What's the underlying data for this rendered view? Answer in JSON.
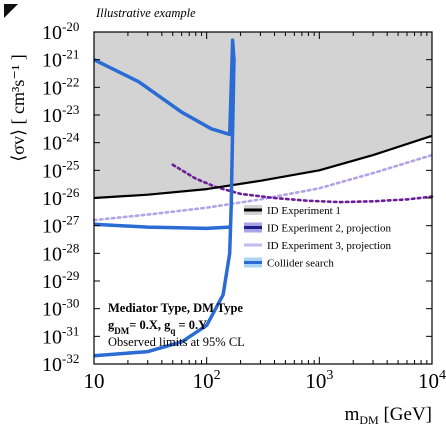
{
  "header": {
    "tag": "Illustrative example"
  },
  "chart_data": {
    "type": "line",
    "xscale": "log",
    "yscale": "log",
    "xlim": [
      10,
      10000
    ],
    "ylim": [
      1e-32,
      1e-20
    ],
    "xlabel": "m",
    "xlabel_sub": "DM",
    "xlabel_unit": " [GeV]",
    "ylabel": "⟨σv⟩ [ cm³s⁻¹ ]",
    "x_ticks": [
      {
        "value": 10,
        "base": "10",
        "exp": ""
      },
      {
        "value": 100,
        "base": "10",
        "exp": "2"
      },
      {
        "value": 1000,
        "base": "10",
        "exp": "3"
      },
      {
        "value": 10000,
        "base": "10",
        "exp": "4"
      }
    ],
    "y_ticks": [
      {
        "value": -20,
        "base": "10",
        "exp": "-20"
      },
      {
        "value": -21,
        "base": "10",
        "exp": "-21"
      },
      {
        "value": -22,
        "base": "10",
        "exp": "-22"
      },
      {
        "value": -23,
        "base": "10",
        "exp": "-23"
      },
      {
        "value": -24,
        "base": "10",
        "exp": "-24"
      },
      {
        "value": -25,
        "base": "10",
        "exp": "-25"
      },
      {
        "value": -26,
        "base": "10",
        "exp": "-26"
      },
      {
        "value": -27,
        "base": "10",
        "exp": "-27"
      },
      {
        "value": -28,
        "base": "10",
        "exp": "-28"
      },
      {
        "value": -29,
        "base": "10",
        "exp": "-29"
      },
      {
        "value": -30,
        "base": "10",
        "exp": "-30"
      },
      {
        "value": -31,
        "base": "10",
        "exp": "-31"
      },
      {
        "value": -32,
        "base": "10",
        "exp": "-32"
      }
    ],
    "series": [
      {
        "name": "ID Experiment 1",
        "color": "#000000",
        "fill": "#d3d3d3",
        "style": "solid",
        "x": [
          10,
          30,
          100,
          300,
          1000,
          3000,
          10000
        ],
        "y": [
          -26.0,
          -25.88,
          -25.68,
          -25.38,
          -25.0,
          -24.45,
          -23.75
        ]
      },
      {
        "name": "ID Experiment 2, projection",
        "color": "#6a1e9a",
        "style": "dotted",
        "x": [
          50,
          80,
          120,
          200,
          400,
          800,
          1500,
          3000,
          6000,
          10000
        ],
        "y": [
          -24.8,
          -25.3,
          -25.6,
          -25.85,
          -26.0,
          -26.1,
          -26.15,
          -26.12,
          -26.05,
          -25.95
        ]
      },
      {
        "name": "ID Experiment 3, projection",
        "color": "#b3a3e6",
        "style": "dotted",
        "x": [
          10,
          30,
          100,
          300,
          1000,
          3000,
          10000
        ],
        "y": [
          -26.8,
          -26.6,
          -26.35,
          -26.05,
          -25.65,
          -25.1,
          -24.45
        ]
      },
      {
        "name": "Collider search",
        "color": "#2b6cd4",
        "style": "solid",
        "x": [
          10,
          25,
          60,
          110,
          160,
          165,
          170,
          175,
          170,
          165,
          160,
          140,
          100,
          60,
          30,
          10
        ],
        "y": [
          -21.0,
          -21.8,
          -22.9,
          -23.5,
          -23.7,
          -22.0,
          -20.3,
          -21.0,
          -23.6,
          -26.3,
          -28.0,
          -29.5,
          -30.6,
          -31.2,
          -31.55,
          -31.7
        ]
      },
      {
        "name": "",
        "color": "#2b6cd4",
        "style": "solid",
        "x": [
          10,
          30,
          100,
          160
        ],
        "y": [
          -26.95,
          -27.05,
          -27.1,
          -27.05
        ]
      }
    ],
    "legend": {
      "position": "center-right",
      "items": [
        {
          "label": "ID Experiment 1",
          "color": "#000000",
          "fill": "#d3d3d3"
        },
        {
          "label": "ID Experiment 2, projection",
          "color": "#1f1f8a",
          "fill": "#a8a4e6"
        },
        {
          "label": "ID Experiment 3, projection",
          "color": "#c4baf0",
          "fill": ""
        },
        {
          "label": "Collider search",
          "color": "#2b6cd4",
          "fill": "#a9d4f2"
        }
      ]
    },
    "annotations": [
      {
        "parts": [
          {
            "t": "Mediator Type, DM Type"
          }
        ],
        "bold": true
      },
      {
        "parts": [
          {
            "t": "g"
          },
          {
            "t": "DM",
            "sub": true
          },
          {
            "t": "= 0.X, g"
          },
          {
            "t": "q",
            "sub": true
          },
          {
            "t": " = 0.Y"
          }
        ],
        "bold": true
      },
      {
        "parts": [
          {
            "t": "Observed limits at 95% CL"
          }
        ],
        "bold": false
      }
    ],
    "grid": false
  }
}
